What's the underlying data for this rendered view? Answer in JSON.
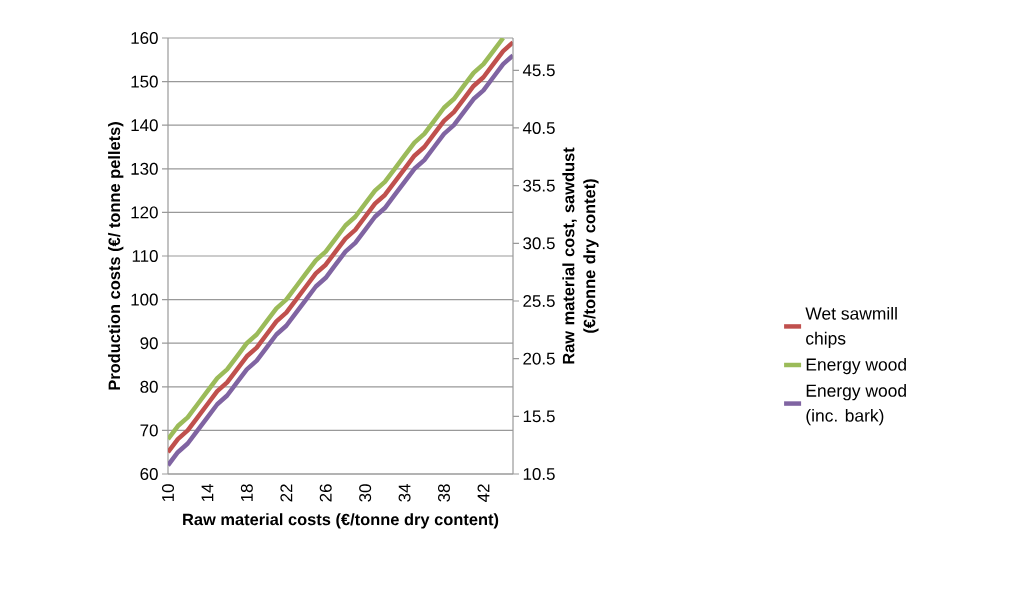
{
  "chart_data": {
    "type": "line",
    "xlabel": "Raw material costs (€/tonne dry content)",
    "ylabel": "Production costs (€/ tonne pellets)",
    "y2label": "Raw material cost, sawdust (€/tonne dry contet)",
    "categories": [
      "10",
      null,
      null,
      null,
      "14",
      null,
      null,
      null,
      "18",
      null,
      null,
      null,
      "22",
      null,
      null,
      null,
      "26",
      null,
      null,
      null,
      "30",
      null,
      null,
      null,
      "34",
      null,
      null,
      null,
      "38",
      null,
      null,
      null,
      "42",
      null,
      null,
      null
    ],
    "series": [
      {
        "name": "Wet sawmill chips",
        "color": "#c0504d",
        "values": [
          65,
          68,
          70,
          73,
          76,
          79,
          81,
          84,
          87,
          89,
          92,
          95,
          97,
          100,
          103,
          106,
          108,
          111,
          114,
          116,
          119,
          122,
          124,
          127,
          130,
          133,
          135,
          138,
          141,
          143,
          146,
          149,
          151,
          154,
          157,
          159
        ]
      },
      {
        "name": "Energy wood",
        "color": "#9bbb59",
        "values": [
          68,
          71,
          73,
          76,
          79,
          82,
          84,
          87,
          90,
          92,
          95,
          98,
          100,
          103,
          106,
          109,
          111,
          114,
          117,
          119,
          122,
          125,
          127,
          130,
          133,
          136,
          138,
          141,
          144,
          146,
          149,
          152,
          154,
          157,
          160,
          null
        ]
      },
      {
        "name": "Energy wood (inc. bark)",
        "color": "#8064a2",
        "values": [
          62,
          65,
          67,
          70,
          73,
          76,
          78,
          81,
          84,
          86,
          89,
          92,
          94,
          97,
          100,
          103,
          105,
          108,
          111,
          113,
          116,
          119,
          121,
          124,
          127,
          130,
          132,
          135,
          138,
          140,
          143,
          146,
          148,
          151,
          154,
          156
        ]
      }
    ],
    "ylim": [
      60,
      160
    ],
    "yticks": [
      60,
      70,
      80,
      90,
      100,
      110,
      120,
      130,
      140,
      150,
      160
    ],
    "y2lim": [
      10.5,
      48.3
    ],
    "y2ticks": [
      10.5,
      15.5,
      20.5,
      25.5,
      30.5,
      35.5,
      40.5,
      45.5
    ],
    "grid": "y",
    "legend": "right",
    "marker": "none",
    "line_style": "solid"
  }
}
